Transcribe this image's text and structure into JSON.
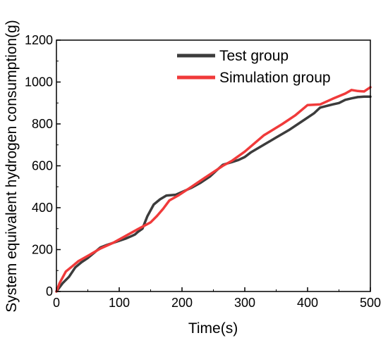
{
  "chart_data": {
    "type": "line",
    "xlabel": "Time(s)",
    "ylabel": "System equivalent hydrogen consumption(g)",
    "xlim": [
      0,
      500
    ],
    "ylim": [
      0,
      1200
    ],
    "x_ticks": [
      "0",
      "100",
      "200",
      "300",
      "400",
      "500"
    ],
    "y_ticks": [
      "0",
      "200",
      "400",
      "600",
      "800",
      "1000",
      "1200"
    ],
    "grid": false,
    "legend_position": "top-right",
    "series": [
      {
        "name": "Test group",
        "color": "#3c3c3c",
        "points": [
          [
            0,
            0
          ],
          [
            10,
            40
          ],
          [
            20,
            70
          ],
          [
            30,
            115
          ],
          [
            40,
            140
          ],
          [
            50,
            160
          ],
          [
            60,
            185
          ],
          [
            70,
            210
          ],
          [
            80,
            222
          ],
          [
            90,
            232
          ],
          [
            100,
            242
          ],
          [
            110,
            252
          ],
          [
            120,
            265
          ],
          [
            125,
            272
          ],
          [
            130,
            285
          ],
          [
            137,
            300
          ],
          [
            145,
            360
          ],
          [
            155,
            415
          ],
          [
            165,
            440
          ],
          [
            175,
            458
          ],
          [
            190,
            462
          ],
          [
            200,
            475
          ],
          [
            215,
            495
          ],
          [
            230,
            520
          ],
          [
            245,
            550
          ],
          [
            255,
            578
          ],
          [
            265,
            605
          ],
          [
            280,
            618
          ],
          [
            290,
            628
          ],
          [
            300,
            642
          ],
          [
            310,
            665
          ],
          [
            330,
            700
          ],
          [
            350,
            735
          ],
          [
            370,
            770
          ],
          [
            390,
            810
          ],
          [
            410,
            850
          ],
          [
            420,
            878
          ],
          [
            440,
            893
          ],
          [
            450,
            900
          ],
          [
            460,
            915
          ],
          [
            470,
            922
          ],
          [
            480,
            928
          ],
          [
            490,
            930
          ],
          [
            500,
            930
          ]
        ]
      },
      {
        "name": "Simulation group",
        "color": "#f03a3a",
        "points": [
          [
            0,
            0
          ],
          [
            5,
            40
          ],
          [
            15,
            95
          ],
          [
            25,
            120
          ],
          [
            35,
            145
          ],
          [
            50,
            170
          ],
          [
            70,
            205
          ],
          [
            90,
            232
          ],
          [
            110,
            265
          ],
          [
            130,
            298
          ],
          [
            150,
            330
          ],
          [
            160,
            360
          ],
          [
            170,
            395
          ],
          [
            180,
            435
          ],
          [
            195,
            460
          ],
          [
            215,
            500
          ],
          [
            235,
            540
          ],
          [
            255,
            580
          ],
          [
            265,
            600
          ],
          [
            280,
            625
          ],
          [
            300,
            668
          ],
          [
            330,
            745
          ],
          [
            360,
            800
          ],
          [
            380,
            840
          ],
          [
            400,
            890
          ],
          [
            420,
            893
          ],
          [
            440,
            920
          ],
          [
            460,
            945
          ],
          [
            470,
            962
          ],
          [
            480,
            957
          ],
          [
            490,
            955
          ],
          [
            500,
            975
          ]
        ]
      }
    ]
  }
}
